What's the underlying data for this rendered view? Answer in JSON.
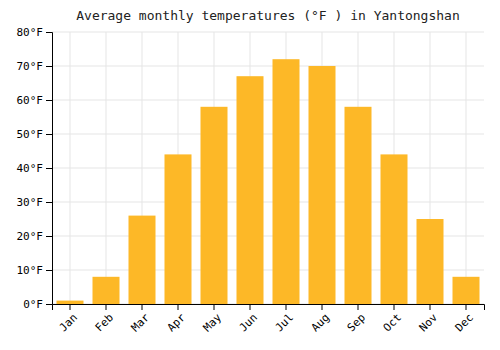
{
  "chart_data": {
    "type": "bar",
    "title": "Average monthly temperatures (°F ) in Yantongshan",
    "categories": [
      "Jan",
      "Feb",
      "Mar",
      "Apr",
      "May",
      "Jun",
      "Jul",
      "Aug",
      "Sep",
      "Oct",
      "Nov",
      "Dec"
    ],
    "values": [
      1,
      8,
      26,
      44,
      58,
      67,
      72,
      70,
      58,
      44,
      25,
      8
    ],
    "color": "#FDB827",
    "ylim": [
      0,
      80
    ],
    "yticks": [
      {
        "value": 0,
        "label": "0°F"
      },
      {
        "value": 10,
        "label": "10°F"
      },
      {
        "value": 20,
        "label": "20°F"
      },
      {
        "value": 30,
        "label": "30°F"
      },
      {
        "value": 40,
        "label": "40°F"
      },
      {
        "value": 50,
        "label": "50°F"
      },
      {
        "value": 60,
        "label": "60°F"
      },
      {
        "value": 70,
        "label": "70°F"
      },
      {
        "value": 80,
        "label": "80°F"
      }
    ],
    "grid": true
  }
}
